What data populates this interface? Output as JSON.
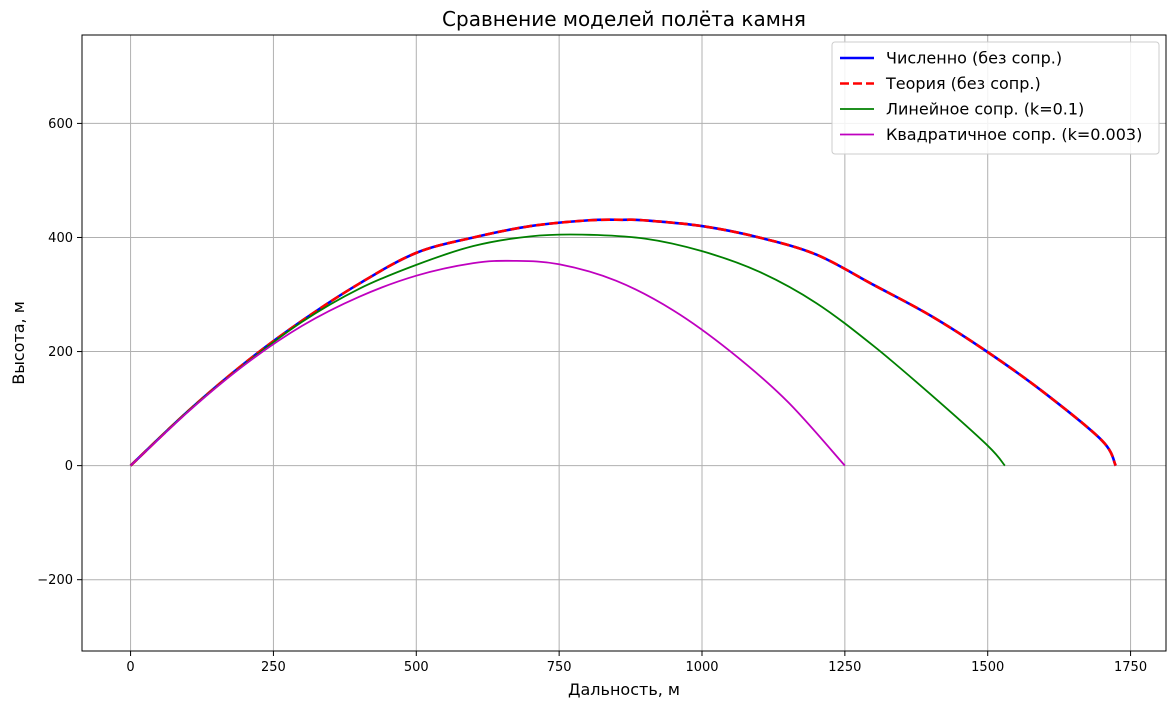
{
  "chart_data": {
    "type": "line",
    "title": "Сравнение моделей полёта камня",
    "xlabel": "Дальность, м",
    "ylabel": "Высота, м",
    "xlim": [
      -85,
      1812
    ],
    "ylim": [
      -325,
      755
    ],
    "xticks": [
      0,
      250,
      500,
      750,
      1000,
      1250,
      1500,
      1750
    ],
    "yticks": [
      -200,
      0,
      200,
      400,
      600
    ],
    "ytick_labels": [
      "−200",
      "0",
      "200",
      "400",
      "600"
    ],
    "grid": true,
    "legend_position": "top-right",
    "series": [
      {
        "name": "Численно (без сопр.)",
        "color": "#0000ff",
        "style": "solid",
        "x": [
          0,
          100,
          200,
          300,
          400,
          500,
          600,
          700,
          800,
          862,
          900,
          1000,
          1100,
          1200,
          1300,
          1400,
          1500,
          1600,
          1700,
          1724
        ],
        "y": [
          0,
          95,
          180,
          254,
          319,
          373,
          400,
          420,
          430,
          431,
          430,
          420,
          400,
          370,
          317,
          263,
          199,
          127,
          44,
          0
        ]
      },
      {
        "name": "Теория (без сопр.)",
        "color": "#ff0000",
        "style": "dashed",
        "x": [
          0,
          100,
          200,
          300,
          400,
          500,
          600,
          700,
          800,
          862,
          900,
          1000,
          1100,
          1200,
          1300,
          1400,
          1500,
          1600,
          1700,
          1724
        ],
        "y": [
          0,
          95,
          180,
          254,
          319,
          373,
          400,
          420,
          430,
          431,
          430,
          420,
          400,
          370,
          317,
          263,
          199,
          127,
          44,
          0
        ]
      },
      {
        "name": "Линейное сопр. (k=0.1)",
        "color": "#008000",
        "style": "solid",
        "x": [
          0,
          100,
          200,
          300,
          400,
          500,
          600,
          700,
          790,
          900,
          1000,
          1100,
          1200,
          1300,
          1400,
          1500,
          1530
        ],
        "y": [
          0,
          95,
          178,
          252,
          310,
          352,
          385,
          402,
          405,
          398,
          376,
          340,
          285,
          210,
          125,
          35,
          0
        ]
      },
      {
        "name": "Квадратичное сопр. (k=0.003)",
        "color": "#bf00bf",
        "style": "solid",
        "x": [
          0,
          100,
          200,
          300,
          400,
          500,
          600,
          670,
          750,
          850,
          950,
          1050,
          1150,
          1250
        ],
        "y": [
          0,
          94,
          177,
          245,
          296,
          333,
          355,
          359,
          353,
          324,
          272,
          200,
          112,
          0
        ]
      }
    ]
  }
}
